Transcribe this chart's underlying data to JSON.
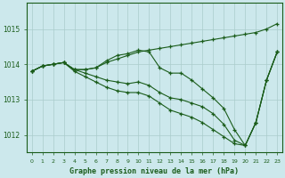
{
  "xlabel": "Graphe pression niveau de la mer (hPa)",
  "background_color": "#cce8ec",
  "grid_color": "#aacccc",
  "line_color": "#1a5c1a",
  "xlim": [
    -0.5,
    23.5
  ],
  "ylim": [
    1011.5,
    1015.75
  ],
  "yticks": [
    1012,
    1013,
    1014,
    1015
  ],
  "xticks": [
    0,
    1,
    2,
    3,
    4,
    5,
    6,
    7,
    8,
    9,
    10,
    11,
    12,
    13,
    14,
    15,
    16,
    17,
    18,
    19,
    20,
    21,
    22,
    23
  ],
  "line1": [
    1013.8,
    1013.95,
    1014.0,
    1014.05,
    1013.85,
    1013.85,
    1013.9,
    1014.1,
    1014.25,
    1014.3,
    1014.4,
    1014.35,
    1013.9,
    1013.75,
    1013.75,
    1013.55,
    1013.3,
    1013.05,
    1012.75,
    1012.15,
    1011.7,
    1012.35,
    1013.55,
    1014.35
  ],
  "line2": [
    1013.8,
    1013.95,
    1014.0,
    1014.05,
    1013.85,
    1013.75,
    1013.65,
    1013.55,
    1013.5,
    1013.45,
    1013.5,
    1013.4,
    1013.2,
    1013.05,
    1013.0,
    1012.9,
    1012.8,
    1012.6,
    1012.3,
    1011.85,
    1011.7,
    1012.35,
    1013.55,
    1014.35
  ],
  "line3": [
    1013.8,
    1013.95,
    1014.0,
    1014.05,
    1013.8,
    1013.65,
    1013.5,
    1013.35,
    1013.25,
    1013.2,
    1013.2,
    1013.1,
    1012.9,
    1012.7,
    1012.6,
    1012.5,
    1012.35,
    1012.15,
    1011.95,
    1011.75,
    1011.7,
    1012.35,
    1013.55,
    1014.35
  ],
  "line_top": [
    1013.8,
    1013.95,
    1014.0,
    1014.05,
    1013.85,
    1013.85,
    1013.9,
    1014.05,
    1014.15,
    1014.25,
    1014.35,
    1014.4,
    1014.45,
    1014.5,
    1014.55,
    1014.6,
    1014.65,
    1014.7,
    1014.75,
    1014.8,
    1014.85,
    1014.9,
    1015.0,
    1015.15
  ]
}
